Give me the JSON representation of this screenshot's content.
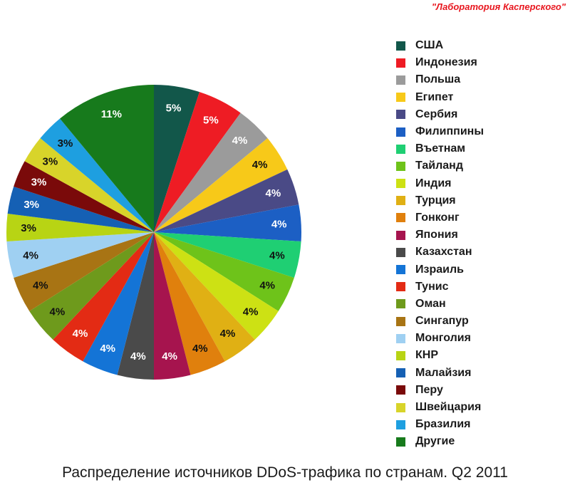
{
  "watermark": "\"Лаборатория Касперского\"",
  "chart_data": {
    "type": "pie",
    "title": "Распределение источников DDoS-трафика по странам. Q2 2011",
    "legend_position": "right",
    "slices": [
      {
        "name": "США",
        "value": 5,
        "label": "5%",
        "color": "#12574a",
        "label_color": "#ffffff"
      },
      {
        "name": "Индонезия",
        "value": 5,
        "label": "5%",
        "color": "#ee1c24",
        "label_color": "#ffffff"
      },
      {
        "name": "Польша",
        "value": 4,
        "label": "4%",
        "color": "#9b9b9b",
        "label_color": "#ffffff"
      },
      {
        "name": "Египет",
        "value": 4,
        "label": "4%",
        "color": "#f7c919",
        "label_color": "#111111"
      },
      {
        "name": "Сербия",
        "value": 4,
        "label": "4%",
        "color": "#4a4a86",
        "label_color": "#ffffff"
      },
      {
        "name": "Филиппины",
        "value": 4,
        "label": "4%",
        "color": "#1c5fc4",
        "label_color": "#ffffff"
      },
      {
        "name": "Въетнам",
        "value": 4,
        "label": "4%",
        "color": "#1fcf73",
        "label_color": "#111111"
      },
      {
        "name": "Тайланд",
        "value": 4,
        "label": "4%",
        "color": "#6ec31a",
        "label_color": "#111111"
      },
      {
        "name": "Индия",
        "value": 4,
        "label": "4%",
        "color": "#cde114",
        "label_color": "#111111"
      },
      {
        "name": "Турция",
        "value": 4,
        "label": "4%",
        "color": "#e0b014",
        "label_color": "#111111"
      },
      {
        "name": "Гонконг",
        "value": 4,
        "label": "4%",
        "color": "#e0800d",
        "label_color": "#111111"
      },
      {
        "name": "Япония",
        "value": 4,
        "label": "4%",
        "color": "#a6144e",
        "label_color": "#ffffff"
      },
      {
        "name": "Казахстан",
        "value": 4,
        "label": "4%",
        "color": "#4a4a4a",
        "label_color": "#ffffff"
      },
      {
        "name": "Израиль",
        "value": 4,
        "label": "4%",
        "color": "#1474d6",
        "label_color": "#ffffff"
      },
      {
        "name": "Тунис",
        "value": 4,
        "label": "4%",
        "color": "#e32b14",
        "label_color": "#ffffff"
      },
      {
        "name": "Оман",
        "value": 4,
        "label": "4%",
        "color": "#6e9a1c",
        "label_color": "#111111"
      },
      {
        "name": "Сингапур",
        "value": 4,
        "label": "4%",
        "color": "#a87414",
        "label_color": "#111111"
      },
      {
        "name": "Монголия",
        "value": 4,
        "label": "4%",
        "color": "#9fd0f2",
        "label_color": "#111111"
      },
      {
        "name": "КНР",
        "value": 3,
        "label": "3%",
        "color": "#b8d414",
        "label_color": "#111111"
      },
      {
        "name": "Малайзия",
        "value": 3,
        "label": "3%",
        "color": "#1560b4",
        "label_color": "#ffffff"
      },
      {
        "name": "Перу",
        "value": 3,
        "label": "3%",
        "color": "#7a0a0a",
        "label_color": "#ffffff"
      },
      {
        "name": "Швейцария",
        "value": 3,
        "label": "3%",
        "color": "#d8d42a",
        "label_color": "#111111"
      },
      {
        "name": "Бразилия",
        "value": 3,
        "label": "3%",
        "color": "#1e9fe0",
        "label_color": "#111111"
      },
      {
        "name": "Другие",
        "value": 11,
        "label": "11%",
        "color": "#177a1c",
        "label_color": "#ffffff"
      }
    ]
  }
}
